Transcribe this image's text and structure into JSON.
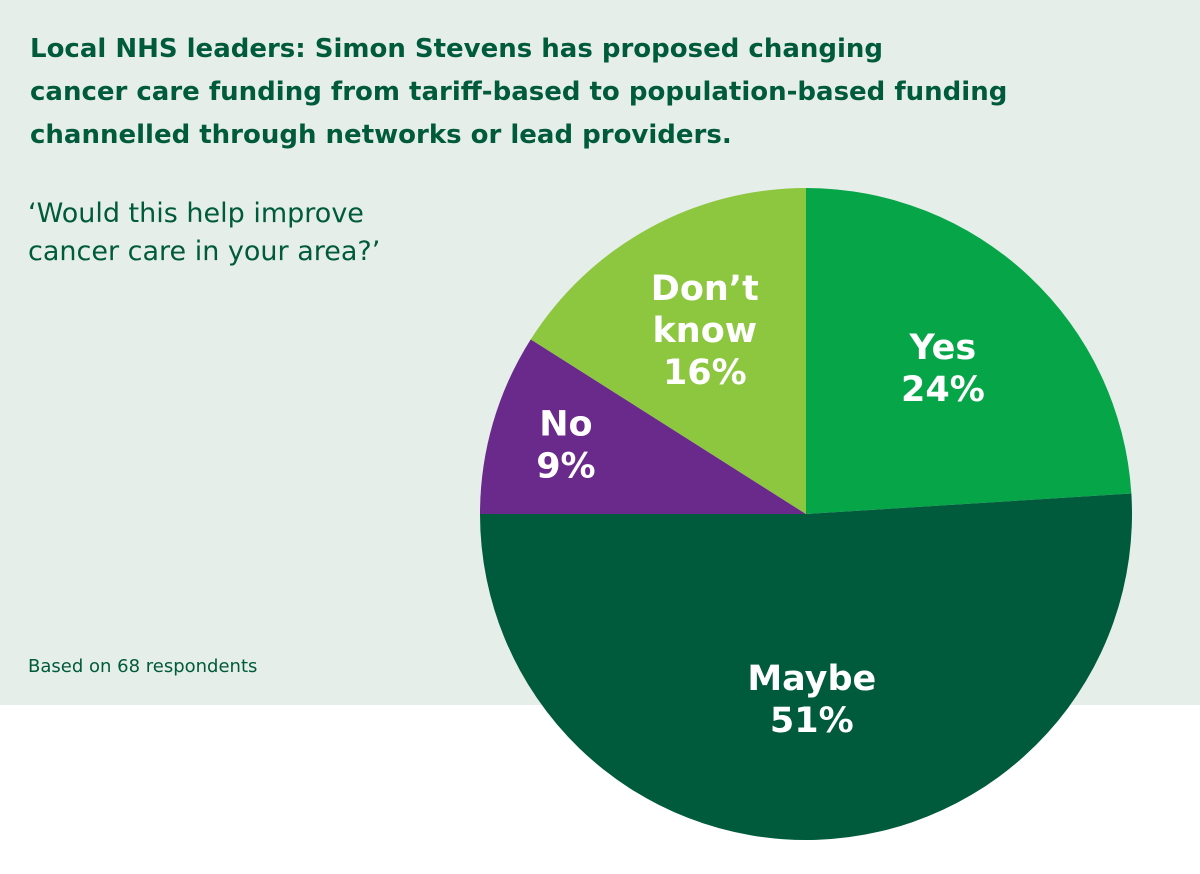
{
  "title_lines": [
    "Local NHS leaders: Simon Stevens has proposed changing",
    "cancer care funding from tariff-based to population-based funding",
    "channelled through networks or lead providers."
  ],
  "question_lines": [
    "‘Would this help improve",
    "cancer care in your area?’"
  ],
  "footnote": "Based on 68 respondents",
  "chart_data": {
    "type": "pie",
    "title": "Local NHS leaders: Simon Stevens has proposed changing cancer care funding from tariff-based to population-based funding channelled through networks or lead providers.",
    "subtitle": "‘Would this help improve cancer care in your area?’",
    "slices": [
      {
        "label_lines": [
          "Yes"
        ],
        "value": 24,
        "value_label": "24%",
        "color": "#06a548"
      },
      {
        "label_lines": [
          "Maybe"
        ],
        "value": 51,
        "value_label": "51%",
        "color": "#005a3c"
      },
      {
        "label_lines": [
          "No"
        ],
        "value": 9,
        "value_label": "9%",
        "color": "#6a2a8c"
      },
      {
        "label_lines": [
          "Don’t",
          "know"
        ],
        "value": 16,
        "value_label": "16%",
        "color": "#8dc63f"
      }
    ],
    "start": "12 o'clock",
    "direction": "clockwise",
    "legend": "none",
    "note": "Based on 68 respondents"
  }
}
